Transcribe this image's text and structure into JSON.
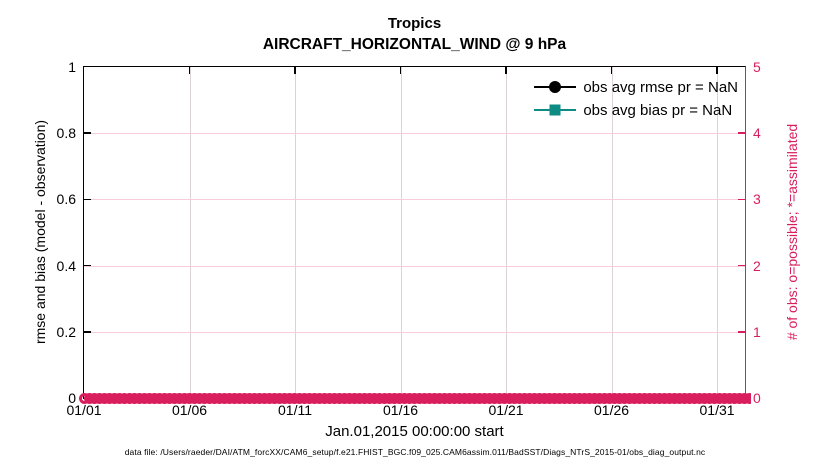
{
  "title": "Tropics",
  "subtitle": "AIRCRAFT_HORIZONTAL_WIND @ 9 hPa",
  "axes": {
    "xlabel": "Jan.01,2015 00:00:00 start",
    "ylabel_left": "rmse and bias (model - observation)",
    "ylabel_right": "# of obs: o=possible; *=assimilated",
    "x_ticks": [
      "01/01",
      "01/06",
      "01/11",
      "01/16",
      "01/21",
      "01/26",
      "01/31"
    ],
    "y_ticks_left": [
      "0",
      "0.2",
      "0.4",
      "0.6",
      "0.8",
      "1"
    ],
    "y_ticks_right": [
      "0",
      "1",
      "2",
      "3",
      "4",
      "5"
    ]
  },
  "legend": {
    "items": [
      {
        "label": "obs avg rmse pr = NaN",
        "marker": "circle",
        "color": "#000000"
      },
      {
        "label": "obs avg bias pr = NaN",
        "marker": "square",
        "color": "#0E8C84"
      }
    ]
  },
  "caption": "data file: /Users/raeder/DAI/ATM_forcXX/CAM6_setup/f.e21.FHIST_BGC.f09_025.CAM6assim.011/BadSST/Diags_NTrS_2015-01/obs_diag_output.nc",
  "colors": {
    "observation_count_pink": "#D81E5C",
    "bias_teal": "#0E8C84",
    "rmse_black": "#000000",
    "grid_vertical": "#DCD4D4",
    "grid_horizontal": "#F6CBDA"
  },
  "chart_data": {
    "type": "line",
    "title": "Tropics",
    "subtitle": "AIRCRAFT_HORIZONTAL_WIND @ 9 hPa",
    "xlabel": "Jan.01,2015 00:00:00 start",
    "ylabel": "rmse and bias (model - observation)",
    "ylabel_right": "# of obs: o=possible; *=assimilated",
    "x_tick_labels": [
      "01/01",
      "01/06",
      "01/11",
      "01/16",
      "01/21",
      "01/26",
      "01/31"
    ],
    "ylim_left": [
      0,
      1
    ],
    "ylim_right": [
      0,
      5
    ],
    "grid": true,
    "legend_position": "top-right",
    "series": [
      {
        "name": "obs avg rmse pr = NaN",
        "yaxis": "left",
        "marker": "filled-circle",
        "color": "#000000",
        "values": []
      },
      {
        "name": "obs avg bias pr = NaN",
        "yaxis": "left",
        "marker": "filled-square",
        "color": "#0E8C84",
        "values": []
      },
      {
        "name": "possible observation count (o markers)",
        "yaxis": "right",
        "marker": "open-circle",
        "color": "#D81E5C",
        "constant_value": 0,
        "extent": "every time bin from 01/01 through 01/31"
      }
    ],
    "annotations": [
      "rmse and bias series are NaN, so no curve is drawn inside the axes",
      "dense overlapping row of open-circle markers at count = 0 spans the entire x axis"
    ]
  }
}
